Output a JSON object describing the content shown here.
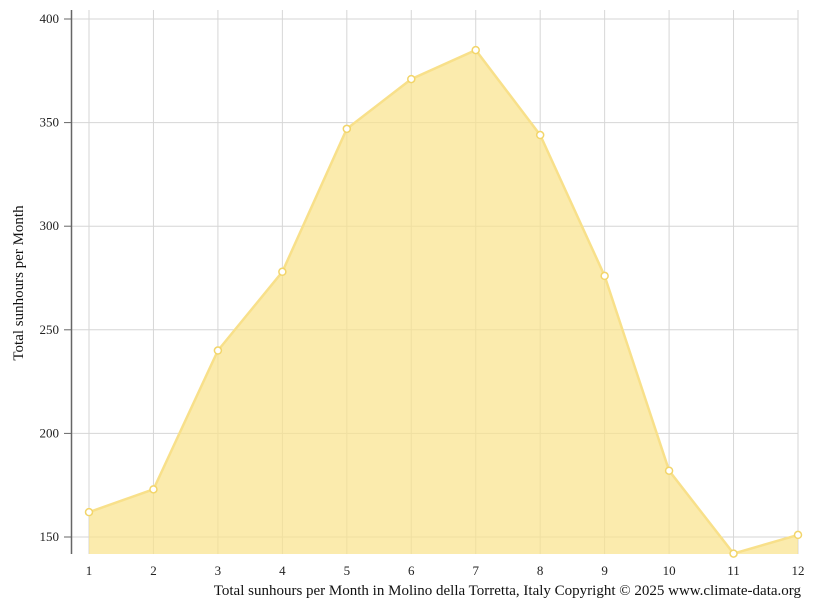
{
  "chart_data": {
    "type": "area",
    "title": "",
    "xlabel": "",
    "ylabel": "Total sunhours per Month",
    "caption": "Total sunhours per Month in Molino della Torretta, Italy Copyright © 2025 www.climate-data.org",
    "x": [
      1,
      2,
      3,
      4,
      5,
      6,
      7,
      8,
      9,
      10,
      11,
      12
    ],
    "yticks": [
      150,
      200,
      250,
      300,
      350,
      400
    ],
    "ylim": [
      142,
      405
    ],
    "grid": true,
    "series": [
      {
        "values": [
          162,
          173,
          240,
          278,
          347,
          371,
          385,
          344,
          276,
          182,
          142,
          151
        ],
        "color": "#f9e28a"
      }
    ]
  }
}
